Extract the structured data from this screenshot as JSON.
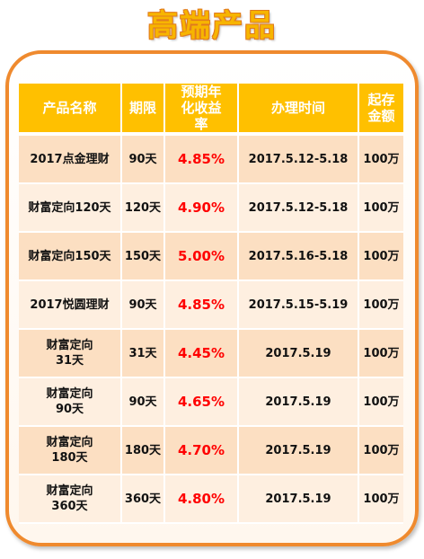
{
  "title": "高端产品",
  "table": {
    "headers": [
      "产品名称",
      "期限",
      "预期年化收益率",
      "办理时间",
      "起存金额"
    ],
    "rows": [
      {
        "name": "2017点金理财",
        "term": "90天",
        "rate": "4.85%",
        "time": "2017.5.12-5.18",
        "min": "100万"
      },
      {
        "name": "财富定向120天",
        "term": "120天",
        "rate": "4.90%",
        "time": "2017.5.12-5.18",
        "min": "100万"
      },
      {
        "name": "财富定向150天",
        "term": "150天",
        "rate": "5.00%",
        "time": "2017.5.16-5.18",
        "min": "100万"
      },
      {
        "name": "2017悦圆理财",
        "term": "90天",
        "rate": "4.85%",
        "time": "2017.5.15-5.19",
        "min": "100万"
      },
      {
        "name": "财富定向31天",
        "term": "31天",
        "rate": "4.45%",
        "time": "2017.5.19",
        "min": "100万"
      },
      {
        "name": "财富定向90天",
        "term": "90天",
        "rate": "4.65%",
        "time": "2017.5.19",
        "min": "100万"
      },
      {
        "name": "财富定向180天",
        "term": "180天",
        "rate": "4.70%",
        "time": "2017.5.19",
        "min": "100万"
      },
      {
        "name": "财富定向360天",
        "term": "360天",
        "rate": "4.80%",
        "time": "2017.5.19",
        "min": "100万"
      }
    ]
  },
  "colors": {
    "title": "#f7b500",
    "frame_border": "#ef8a2e",
    "header_bg": "#ffc000",
    "row_dark": "#fcdfc2",
    "row_light": "#feefe0",
    "rate_text": "#ff0000"
  }
}
